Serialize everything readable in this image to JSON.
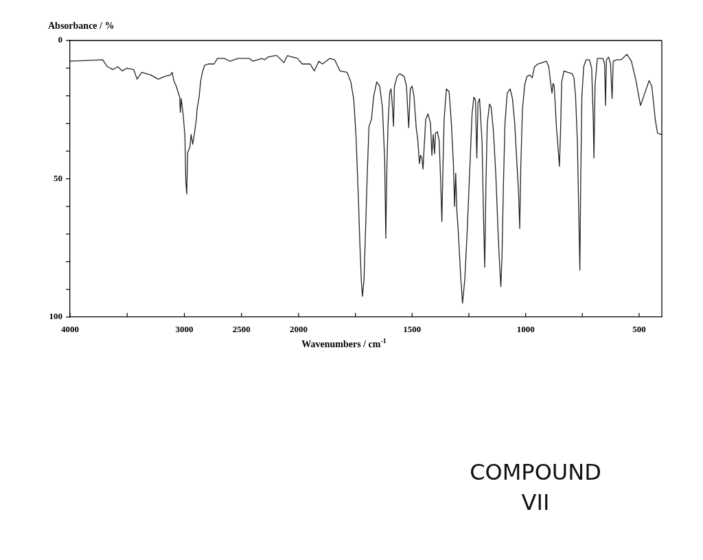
{
  "chart_data": [
    {
      "type": "line",
      "ylabel": "Absorbance / %",
      "color": "#222222",
      "marker": "none",
      "xlim": [
        4000,
        2000
      ],
      "xticks": [
        4000,
        {
          "value": 3500,
          "label": null
        },
        3000,
        2500,
        2000
      ],
      "ylim": [
        100,
        0
      ],
      "yticks": [
        0,
        {
          "value": 10,
          "label": null
        },
        {
          "value": 20,
          "label": null
        },
        {
          "value": 30,
          "label": null
        },
        {
          "value": 40,
          "label": null
        },
        50,
        {
          "value": 60,
          "label": null
        },
        {
          "value": 70,
          "label": null
        },
        {
          "value": 80,
          "label": null
        },
        {
          "value": 90,
          "label": null
        },
        100
      ],
      "x": [
        4000,
        3714,
        3673,
        3623,
        3583,
        3543,
        3503,
        3443,
        3413,
        3372,
        3292,
        3228,
        3172,
        3122,
        3107,
        3092,
        3071,
        3056,
        3041,
        3035,
        3027,
        3011,
        2995,
        2987,
        2979,
        2971,
        2951,
        2941,
        2927,
        2911,
        2895,
        2889,
        2871,
        2858,
        2845,
        2824,
        2791,
        2740,
        2710,
        2650,
        2600,
        2530,
        2430,
        2400,
        2319,
        2299,
        2269,
        2209,
        2189,
        2129,
        2099,
        2009,
        2000
      ],
      "values": [
        7.5,
        7,
        9.5,
        10.5,
        9.5,
        11,
        10,
        10.5,
        14,
        11.5,
        12.5,
        14,
        13,
        12.5,
        11.5,
        14.5,
        16.5,
        18.5,
        20.5,
        26,
        21,
        26.5,
        34.5,
        51,
        55.5,
        40.5,
        38.5,
        34,
        37.5,
        33.5,
        28.5,
        25,
        20.5,
        15,
        12,
        9,
        8.5,
        8.5,
        6.5,
        6.5,
        7.5,
        6.5,
        6.5,
        7.5,
        6.5,
        7,
        6,
        5.5,
        5.5,
        8,
        5.5,
        6.5,
        7
      ]
    },
    {
      "type": "line",
      "xlabel": "Wavenumbers / cm$^{-1}$",
      "annotations": [
        "COMPOUND VII"
      ],
      "color": "#222222",
      "marker": "none",
      "tick_labels": "x",
      "xlim": [
        2000,
        400
      ],
      "xticks": [
        {
          "value": 1750,
          "label": null
        },
        1500,
        {
          "value": 1250,
          "label": null
        },
        1000,
        {
          "value": 750,
          "label": null
        },
        500
      ],
      "ylim": [
        100,
        0
      ],
      "x": [
        2000,
        1984,
        1949,
        1931,
        1911,
        1895,
        1863,
        1841,
        1818,
        1787,
        1770,
        1757,
        1747,
        1737,
        1730,
        1724,
        1719,
        1712,
        1704,
        1697,
        1690,
        1679,
        1669,
        1656,
        1643,
        1631,
        1621,
        1616,
        1611,
        1606,
        1599,
        1593,
        1588,
        1582,
        1578,
        1566,
        1555,
        1535,
        1525,
        1515,
        1508,
        1500,
        1492,
        1482,
        1475,
        1468,
        1463,
        1457,
        1452,
        1447,
        1440,
        1430,
        1419,
        1413,
        1407,
        1401,
        1397,
        1389,
        1381,
        1374,
        1369,
        1364,
        1359,
        1349,
        1337,
        1327,
        1318,
        1313,
        1308,
        1303,
        1296,
        1286,
        1278,
        1268,
        1258,
        1246,
        1236,
        1228,
        1221,
        1215,
        1210,
        1203,
        1192,
        1185,
        1180,
        1175,
        1169,
        1159,
        1152,
        1142,
        1131,
        1121,
        1114,
        1109,
        1104,
        1098,
        1091,
        1081,
        1068,
        1058,
        1048,
        1038,
        1031,
        1026,
        1021,
        1014,
        1004,
        994,
        981,
        971,
        961,
        946,
        926,
        908,
        898,
        891,
        884,
        879,
        874,
        864,
        856,
        851,
        846,
        841,
        831,
        815,
        795,
        787,
        780,
        772,
        766,
        761,
        757,
        752,
        744,
        734,
        719,
        709,
        702,
        699,
        694,
        684,
        659,
        652,
        648,
        644,
        634,
        626,
        619,
        614,
        599,
        579,
        554,
        534,
        514,
        494,
        479,
        456,
        444,
        429,
        419,
        400
      ],
      "values": [
        7,
        8.5,
        8.5,
        11,
        7.5,
        8.5,
        6.5,
        7,
        11,
        11.5,
        15,
        21.5,
        35,
        56.5,
        74,
        86.5,
        92.5,
        86.5,
        65.5,
        46.5,
        31,
        28.5,
        20,
        15,
        16.5,
        24,
        43,
        71.5,
        45,
        30,
        19,
        17.5,
        22.5,
        31,
        16.5,
        13,
        12,
        13,
        16.5,
        31.5,
        17.5,
        16.5,
        20,
        31.5,
        36,
        44.5,
        41.5,
        42.5,
        46.5,
        38.5,
        28.5,
        26.5,
        30,
        41.5,
        34,
        41,
        33.5,
        33,
        36,
        51.5,
        65.5,
        45,
        28.5,
        17.5,
        18.5,
        30,
        45,
        60,
        48,
        61.5,
        70,
        85.5,
        95,
        86.5,
        70,
        46.5,
        26.5,
        20.5,
        21.5,
        42.5,
        22.5,
        21,
        36.5,
        65.5,
        82,
        53,
        30,
        23,
        24,
        32.5,
        49,
        70,
        82,
        89,
        78,
        53,
        30,
        19,
        17.5,
        21,
        30,
        45,
        55,
        68,
        45,
        25,
        16,
        13,
        12.5,
        13.5,
        9.5,
        8.5,
        8,
        7.5,
        9.5,
        14.5,
        19,
        15.5,
        16.5,
        31.5,
        40,
        45.5,
        32.5,
        15,
        11,
        11.5,
        12,
        13.5,
        20,
        36.5,
        61.5,
        83,
        49,
        20,
        9.5,
        7,
        7,
        10,
        28.5,
        42.5,
        16,
        6.5,
        6.5,
        8.5,
        23.5,
        7,
        6,
        8.5,
        21,
        7.5,
        7,
        7,
        5,
        7.5,
        14.5,
        23.5,
        20,
        14.5,
        16.5,
        28.5,
        33.5,
        34
      ]
    }
  ]
}
